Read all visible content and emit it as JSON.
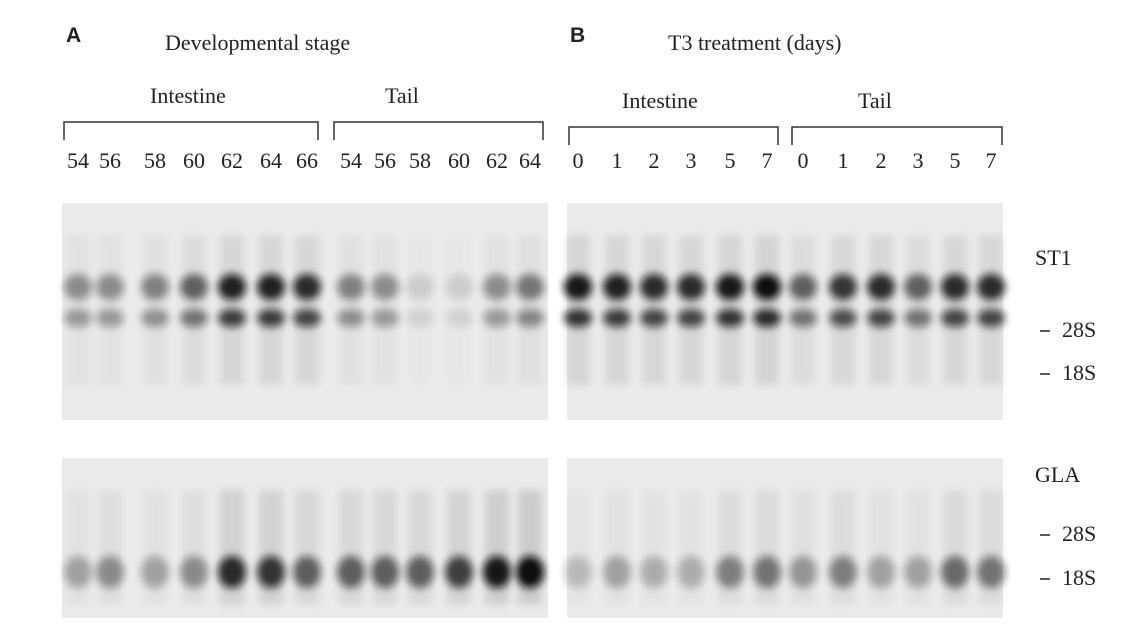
{
  "panels": [
    {
      "label": "A",
      "title": "Developmental stage",
      "groups": [
        {
          "name": "Intestine",
          "lanes": [
            "54",
            "56",
            "58",
            "60",
            "62",
            "64",
            "66"
          ]
        },
        {
          "name": "Tail",
          "lanes": [
            "54",
            "56",
            "58",
            "60",
            "62",
            "64"
          ]
        }
      ]
    },
    {
      "label": "B",
      "title": "T3 treatment (days)",
      "groups": [
        {
          "name": "Intestine",
          "lanes": [
            "0",
            "1",
            "2",
            "3",
            "5",
            "7"
          ]
        },
        {
          "name": "Tail",
          "lanes": [
            "0",
            "1",
            "2",
            "3",
            "5",
            "7"
          ]
        }
      ]
    }
  ],
  "blots": [
    {
      "probe": "ST1",
      "markers": [
        "28S",
        "18S"
      ]
    },
    {
      "probe": "GLA",
      "markers": [
        "28S",
        "18S"
      ]
    }
  ]
}
